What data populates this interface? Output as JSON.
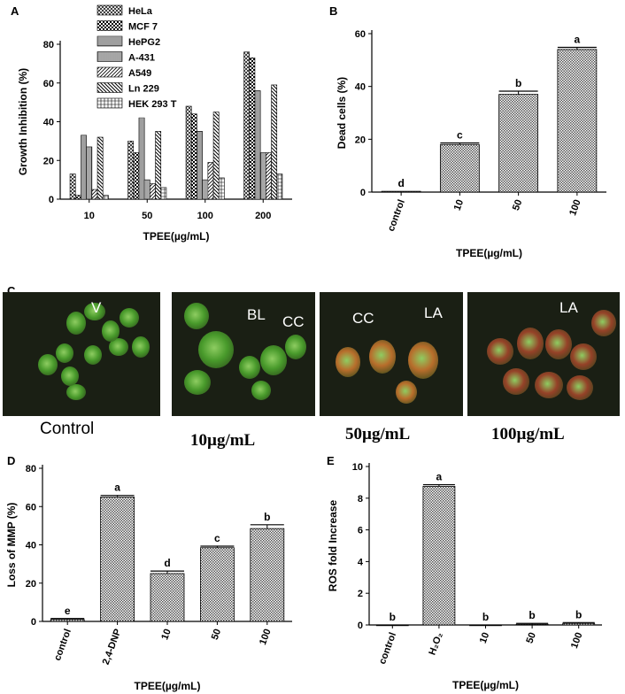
{
  "panels": {
    "a": "A",
    "b": "B",
    "c": "C",
    "d": "D",
    "e": "E"
  },
  "micrographs": {
    "labels": [
      "V",
      "BL",
      "CC",
      "CC",
      "LA",
      "LA"
    ],
    "captions": [
      "Control",
      "10µg/mL",
      "50µg/mL",
      "100µg/mL"
    ]
  },
  "chart_data": [
    {
      "id": "A",
      "type": "bar",
      "ylabel": "Growth Inhibition (%)",
      "xlabel": "TPEE(µg/mL)",
      "categories": [
        "10",
        "50",
        "100",
        "200"
      ],
      "ylim": [
        0,
        80
      ],
      "yticks": [
        0,
        20,
        40,
        60,
        80
      ],
      "legend_position": "top-left",
      "series": [
        {
          "name": "HeLa",
          "values": [
            13,
            30,
            48,
            76
          ]
        },
        {
          "name": "MCF 7",
          "values": [
            2,
            24,
            44,
            73
          ]
        },
        {
          "name": "HePG2",
          "values": [
            33,
            42,
            35,
            56
          ]
        },
        {
          "name": "A-431",
          "values": [
            27,
            10,
            10,
            24
          ]
        },
        {
          "name": "A549",
          "values": [
            5,
            8,
            19,
            24
          ]
        },
        {
          "name": "Ln 229",
          "values": [
            32,
            35,
            45,
            59
          ]
        },
        {
          "name": "HEK 293 T",
          "values": [
            2,
            6,
            11,
            13
          ]
        }
      ]
    },
    {
      "id": "B",
      "type": "bar",
      "ylabel": "Dead cells (%)",
      "xlabel": "TPEE(µg/mL)",
      "categories": [
        "control",
        "10",
        "50",
        "100"
      ],
      "values": [
        0.3,
        18,
        37,
        54
      ],
      "errors": [
        0,
        0.6,
        1.2,
        0.8
      ],
      "letters": [
        "d",
        "c",
        "b",
        "a"
      ],
      "ylim": [
        0,
        60
      ],
      "yticks": [
        0,
        20,
        40,
        60
      ]
    },
    {
      "id": "D",
      "type": "bar",
      "ylabel": "Loss of MMP (%)",
      "xlabel": "TPEE(µg/mL)",
      "categories": [
        "control",
        "2,4-DNP",
        "10",
        "50",
        "100"
      ],
      "values": [
        1,
        65,
        25,
        38.5,
        48.5
      ],
      "errors": [
        0.5,
        0.8,
        1.3,
        0.8,
        2
      ],
      "letters": [
        "e",
        "a",
        "d",
        "c",
        "b"
      ],
      "ylim": [
        0,
        80
      ],
      "yticks": [
        0,
        20,
        40,
        60,
        80
      ]
    },
    {
      "id": "E",
      "type": "bar",
      "ylabel": "ROS fold Increase",
      "xlabel": "TPEE(µg/mL)",
      "categories": [
        "control",
        "H₂O₂",
        "10",
        "50",
        "100"
      ],
      "values": [
        0,
        8.75,
        0,
        0.05,
        0.1
      ],
      "errors": [
        0,
        0.1,
        0,
        0.05,
        0.05
      ],
      "letters": [
        "b",
        "a",
        "b",
        "b",
        "b"
      ],
      "ylim": [
        0,
        10
      ],
      "yticks": [
        0,
        2,
        4,
        6,
        8,
        10
      ]
    }
  ],
  "colors": {
    "bar_fill": "#d9d9d9",
    "axis": "#000000",
    "micro_green": "#4ea82e",
    "micro_orange": "#c9762e",
    "micro_red": "#a3452a"
  }
}
